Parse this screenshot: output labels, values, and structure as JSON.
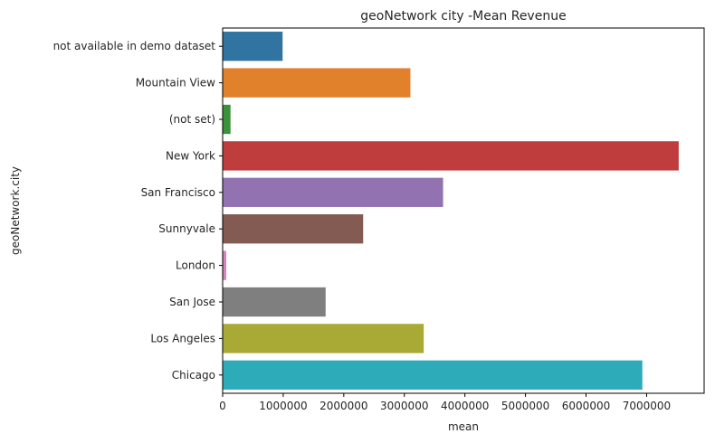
{
  "chart_data": {
    "type": "bar",
    "orientation": "horizontal",
    "title": "geoNetwork city -Mean Revenue",
    "xlabel": "mean",
    "ylabel": "geoNetwork.city",
    "categories": [
      "not available in demo dataset",
      "Mountain View",
      "(not set)",
      "New York",
      "San Francisco",
      "Sunnyvale",
      "London",
      "San Jose",
      "Los Angeles",
      "Chicago"
    ],
    "values": [
      990000,
      3100000,
      130000,
      7530000,
      3640000,
      2320000,
      60000,
      1700000,
      3320000,
      6930000
    ],
    "colors": [
      "#3274a1",
      "#e1812c",
      "#3a923a",
      "#c03d3e",
      "#9372b2",
      "#845b53",
      "#d684bd",
      "#7f7f7f",
      "#a9aa35",
      "#2eabb8"
    ],
    "xlim": [
      0,
      7950000
    ],
    "xticks": [
      0,
      1000000,
      2000000,
      3000000,
      4000000,
      5000000,
      6000000,
      7000000
    ],
    "xtick_labels": [
      "0",
      "1000000",
      "2000000",
      "3000000",
      "4000000",
      "5000000",
      "6000000",
      "7000000"
    ],
    "grid": false,
    "legend": "none"
  }
}
